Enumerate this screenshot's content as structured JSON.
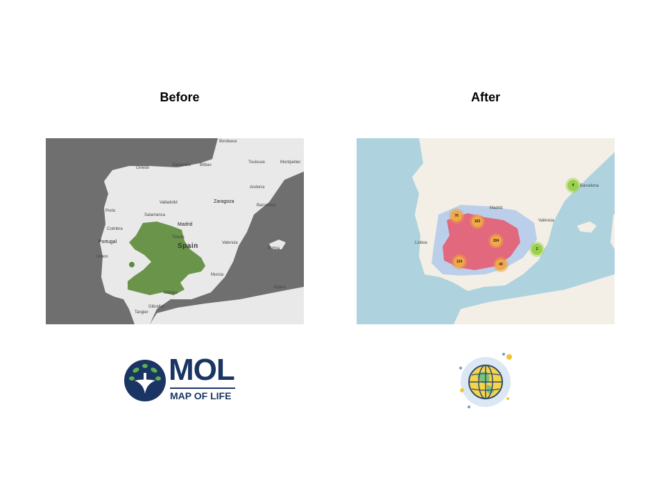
{
  "titles": {
    "before": "Before",
    "after": "After"
  },
  "before_map": {
    "labels": {
      "spain": "Spain",
      "portugal": "Portugal",
      "madrid": "Madrid",
      "zaragoza": "Zaragoza",
      "toulouse": "Toulouse",
      "montpellier": "Montpellier",
      "barcelona": "Barcelona",
      "valencia": "Valencia",
      "lisbon": "Lisbon",
      "porto": "Porto",
      "salamanca": "Salamanca",
      "valladolid": "Valladolid",
      "toledo": "Toledo",
      "malaga": "Málaga",
      "gibraltar": "Gibraltar",
      "tangier": "Tangier",
      "algiers": "Algiers",
      "palma": "Palma",
      "murcia": "Murcia",
      "andorra": "Andorra",
      "coimbra": "Coimbra",
      "bordeaux": "Bordeaux",
      "santander": "Santander",
      "oviedo": "Oviedo",
      "bilbao": "Bilbao"
    }
  },
  "after_map": {
    "clusters": [
      {
        "count": "76",
        "color": "orange"
      },
      {
        "count": "163",
        "color": "orange"
      },
      {
        "count": "204",
        "color": "orange"
      },
      {
        "count": "124",
        "color": "orange"
      },
      {
        "count": "40",
        "color": "orange"
      },
      {
        "count": "2",
        "color": "green"
      },
      {
        "count": "4",
        "color": "green"
      }
    ],
    "labels": {
      "lisboa": "Lisboa",
      "madrid": "Madrid",
      "barcelona": "Barcelona",
      "valencia": "València"
    }
  },
  "logos": {
    "mol_word": "MOL",
    "mol_sub": "MAP OF LIFE",
    "mol_color": "#1a3563",
    "globe_icon": "globe-icon"
  },
  "colors": {
    "occurrence_green": "#5e8c3c",
    "heat_red": "#e8566a",
    "heat_blue": "#a8c4ec",
    "cluster_orange": "#f0a848",
    "cluster_green": "#9ad04a"
  }
}
